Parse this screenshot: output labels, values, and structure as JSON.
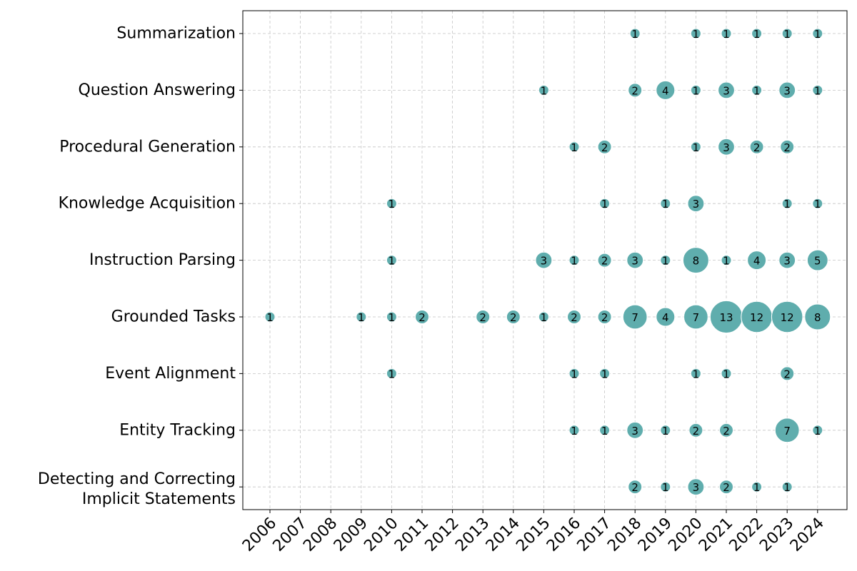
{
  "chart_data": {
    "type": "scatter",
    "title": "",
    "xlabel": "",
    "ylabel": "",
    "grid": true,
    "x": [
      "2006",
      "2007",
      "2008",
      "2009",
      "2010",
      "2011",
      "2012",
      "2013",
      "2014",
      "2015",
      "2016",
      "2017",
      "2018",
      "2019",
      "2020",
      "2021",
      "2022",
      "2023",
      "2024"
    ],
    "categories": [
      "Summarization",
      "Question Answering ",
      "Procedural Generation",
      "Knowledge Acquisition",
      "Instruction Parsing",
      "Grounded Tasks",
      "Event Alignment",
      "Entity Tracking",
      "Detecting and Correcting\nImplicit Statements"
    ],
    "series": [
      {
        "name": "Summarization",
        "points": [
          [
            2018,
            1
          ],
          [
            2020,
            1
          ],
          [
            2021,
            1
          ],
          [
            2022,
            1
          ],
          [
            2023,
            1
          ],
          [
            2024,
            1
          ]
        ]
      },
      {
        "name": "Question Answering ",
        "points": [
          [
            2015,
            1
          ],
          [
            2018,
            2
          ],
          [
            2019,
            4
          ],
          [
            2020,
            1
          ],
          [
            2021,
            3
          ],
          [
            2022,
            1
          ],
          [
            2023,
            3
          ],
          [
            2024,
            1
          ]
        ]
      },
      {
        "name": "Procedural Generation",
        "points": [
          [
            2016,
            1
          ],
          [
            2017,
            2
          ],
          [
            2020,
            1
          ],
          [
            2021,
            3
          ],
          [
            2022,
            2
          ],
          [
            2023,
            2
          ]
        ]
      },
      {
        "name": "Knowledge Acquisition",
        "points": [
          [
            2010,
            1
          ],
          [
            2017,
            1
          ],
          [
            2019,
            1
          ],
          [
            2020,
            3
          ],
          [
            2023,
            1
          ],
          [
            2024,
            1
          ]
        ]
      },
      {
        "name": "Instruction Parsing",
        "points": [
          [
            2010,
            1
          ],
          [
            2015,
            3
          ],
          [
            2016,
            1
          ],
          [
            2017,
            2
          ],
          [
            2018,
            3
          ],
          [
            2019,
            1
          ],
          [
            2020,
            8
          ],
          [
            2021,
            1
          ],
          [
            2022,
            4
          ],
          [
            2023,
            3
          ],
          [
            2024,
            5
          ]
        ]
      },
      {
        "name": "Grounded Tasks",
        "points": [
          [
            2006,
            1
          ],
          [
            2009,
            1
          ],
          [
            2010,
            1
          ],
          [
            2011,
            2
          ],
          [
            2013,
            2
          ],
          [
            2014,
            2
          ],
          [
            2015,
            1
          ],
          [
            2016,
            2
          ],
          [
            2017,
            2
          ],
          [
            2018,
            7
          ],
          [
            2019,
            4
          ],
          [
            2020,
            7
          ],
          [
            2021,
            13
          ],
          [
            2022,
            12
          ],
          [
            2023,
            12
          ],
          [
            2024,
            8
          ]
        ]
      },
      {
        "name": "Event Alignment",
        "points": [
          [
            2010,
            1
          ],
          [
            2016,
            1
          ],
          [
            2017,
            1
          ],
          [
            2020,
            1
          ],
          [
            2021,
            1
          ],
          [
            2023,
            2
          ]
        ]
      },
      {
        "name": "Entity Tracking",
        "points": [
          [
            2016,
            1
          ],
          [
            2017,
            1
          ],
          [
            2018,
            3
          ],
          [
            2019,
            1
          ],
          [
            2020,
            2
          ],
          [
            2021,
            2
          ],
          [
            2023,
            7
          ],
          [
            2024,
            1
          ]
        ]
      },
      {
        "name": "Detecting and Correcting\nImplicit Statements",
        "points": [
          [
            2018,
            2
          ],
          [
            2019,
            1
          ],
          [
            2020,
            3
          ],
          [
            2021,
            2
          ],
          [
            2022,
            1
          ],
          [
            2023,
            1
          ]
        ]
      }
    ],
    "colors": {
      "bubble": "#5fadad",
      "bubble_edge": "#ffffff",
      "grid": "#c4c4c4",
      "axis": "#000000",
      "label": "#000000"
    }
  }
}
